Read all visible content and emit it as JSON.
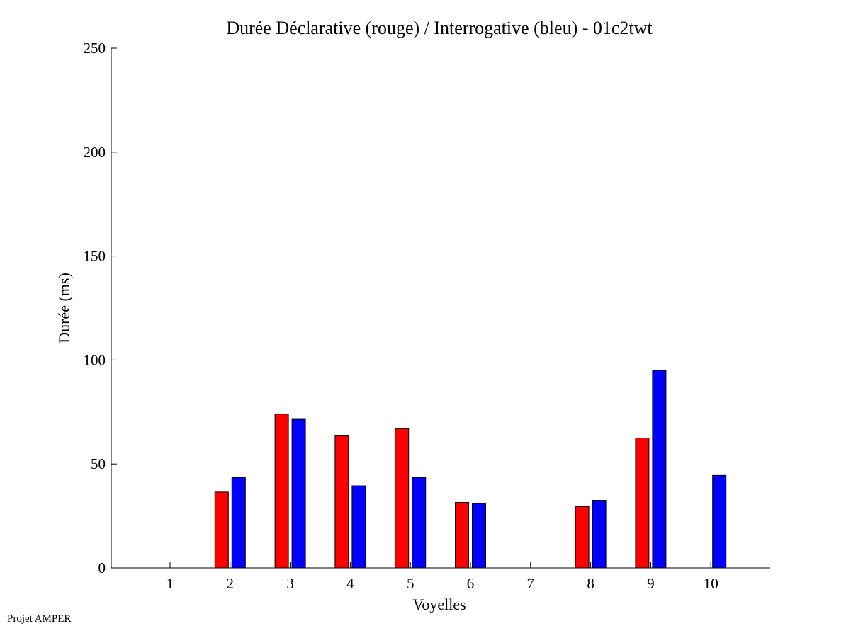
{
  "chart_data": {
    "type": "bar",
    "title": "Durée Déclarative (rouge) / Interrogative (bleu) - 01c2twt",
    "xlabel": "Voyelles",
    "ylabel": "Durée (ms)",
    "categories": [
      "1",
      "2",
      "3",
      "4",
      "5",
      "6",
      "7",
      "8",
      "9",
      "10"
    ],
    "ylim": [
      0,
      250
    ],
    "yticks": [
      "0",
      "50",
      "100",
      "150",
      "200",
      "250"
    ],
    "grid": false,
    "series": [
      {
        "color": "#ff0000",
        "values": [
          0,
          36.5,
          74,
          63.5,
          67,
          31.5,
          0,
          29.5,
          62.5,
          0
        ]
      },
      {
        "color": "#0000ff",
        "values": [
          0,
          43.5,
          71.5,
          39.5,
          43.5,
          31,
          0,
          32.5,
          95,
          44.5
        ]
      }
    ]
  },
  "footer": {
    "text": "Projet AMPER"
  }
}
